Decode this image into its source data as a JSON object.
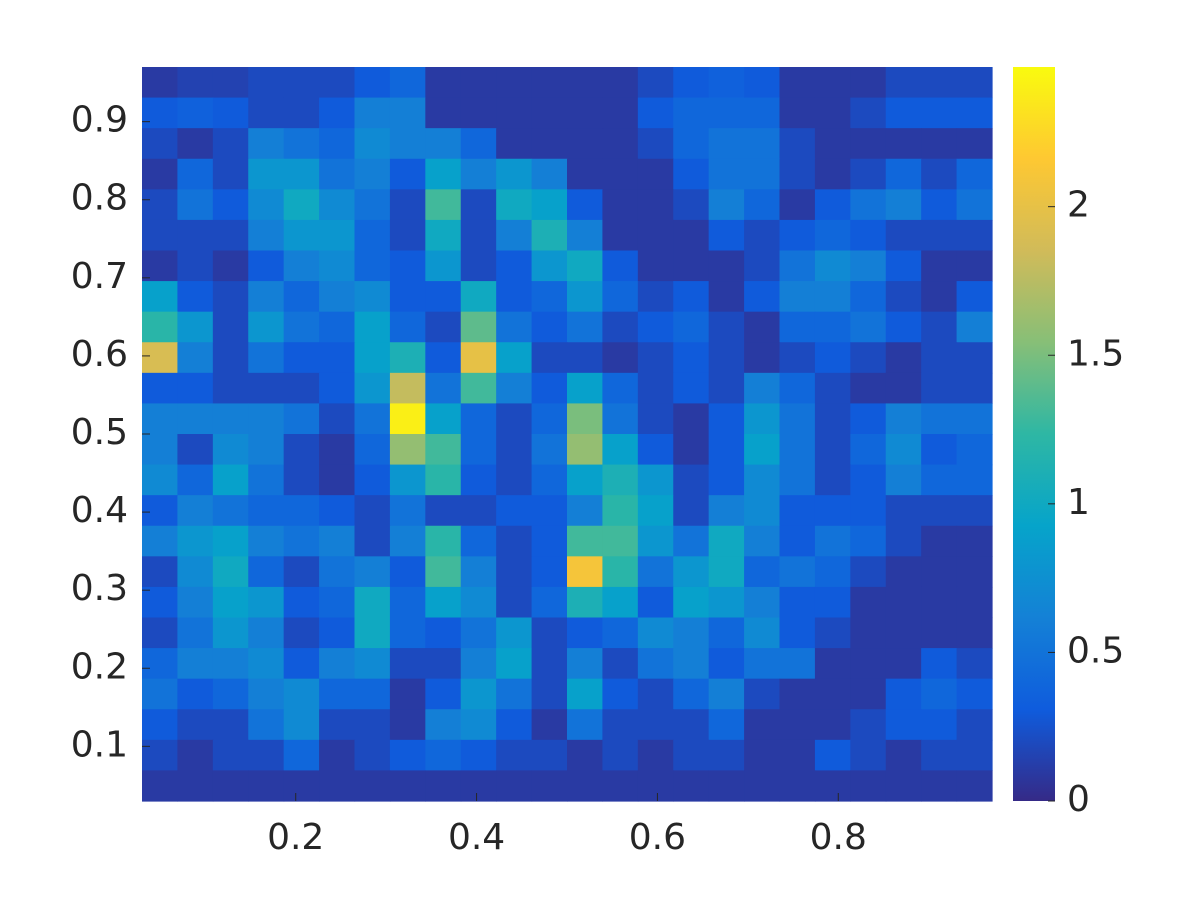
{
  "chart_data": {
    "type": "heatmap",
    "xlim": [
      0.03,
      0.97
    ],
    "ylim": [
      0.03,
      0.97
    ],
    "xticks": [
      0.2,
      0.4,
      0.6,
      0.8
    ],
    "yticks": [
      0.1,
      0.2,
      0.3,
      0.4,
      0.5,
      0.6,
      0.7,
      0.8,
      0.9
    ],
    "clim": [
      0,
      2.47
    ],
    "cticks": [
      0,
      0.5,
      1,
      1.5,
      2
    ],
    "colormap": [
      "#352a87",
      "#0f5cdd",
      "#1481d6",
      "#06a4ca",
      "#2eb7a4",
      "#87bf77",
      "#d1bb59",
      "#fec832",
      "#f9fb0e"
    ],
    "z": [
      [
        0.1,
        0.15,
        0.15,
        0.2,
        0.2,
        0.2,
        0.3,
        0.4,
        0.1,
        0.1,
        0.1,
        0.1,
        0.1,
        0.1,
        0.2,
        0.3,
        0.35,
        0.3,
        0.1,
        0.1,
        0.1,
        0.2,
        0.2,
        0.2
      ],
      [
        0.3,
        0.35,
        0.3,
        0.2,
        0.2,
        0.3,
        0.6,
        0.6,
        0.1,
        0.1,
        0.1,
        0.1,
        0.1,
        0.1,
        0.3,
        0.4,
        0.4,
        0.4,
        0.1,
        0.1,
        0.2,
        0.3,
        0.3,
        0.3
      ],
      [
        0.2,
        0.1,
        0.2,
        0.6,
        0.5,
        0.4,
        0.7,
        0.6,
        0.6,
        0.4,
        0.1,
        0.1,
        0.1,
        0.1,
        0.2,
        0.4,
        0.5,
        0.5,
        0.2,
        0.1,
        0.1,
        0.1,
        0.1,
        0.1
      ],
      [
        0.1,
        0.4,
        0.2,
        0.8,
        0.8,
        0.5,
        0.6,
        0.3,
        0.9,
        0.6,
        0.8,
        0.6,
        0.1,
        0.1,
        0.1,
        0.3,
        0.5,
        0.5,
        0.2,
        0.1,
        0.2,
        0.4,
        0.2,
        0.4
      ],
      [
        0.2,
        0.5,
        0.3,
        0.7,
        1.0,
        0.7,
        0.5,
        0.2,
        1.3,
        0.2,
        1.0,
        0.9,
        0.3,
        0.1,
        0.1,
        0.2,
        0.6,
        0.4,
        0.1,
        0.3,
        0.5,
        0.6,
        0.3,
        0.5
      ],
      [
        0.2,
        0.2,
        0.2,
        0.6,
        0.8,
        0.8,
        0.4,
        0.2,
        1.0,
        0.2,
        0.6,
        1.1,
        0.6,
        0.1,
        0.1,
        0.1,
        0.3,
        0.2,
        0.3,
        0.4,
        0.3,
        0.2,
        0.2,
        0.2
      ],
      [
        0.1,
        0.2,
        0.1,
        0.3,
        0.6,
        0.7,
        0.4,
        0.3,
        0.8,
        0.2,
        0.3,
        0.8,
        1.0,
        0.3,
        0.1,
        0.1,
        0.1,
        0.2,
        0.5,
        0.7,
        0.6,
        0.3,
        0.1,
        0.1
      ],
      [
        0.9,
        0.3,
        0.2,
        0.6,
        0.4,
        0.6,
        0.7,
        0.3,
        0.3,
        1.0,
        0.3,
        0.4,
        0.8,
        0.4,
        0.2,
        0.3,
        0.1,
        0.3,
        0.6,
        0.6,
        0.4,
        0.2,
        0.1,
        0.3
      ],
      [
        1.2,
        0.8,
        0.2,
        0.8,
        0.5,
        0.4,
        0.9,
        0.4,
        0.2,
        1.4,
        0.5,
        0.3,
        0.5,
        0.2,
        0.3,
        0.4,
        0.2,
        0.1,
        0.4,
        0.4,
        0.5,
        0.3,
        0.2,
        0.6
      ],
      [
        1.9,
        0.6,
        0.2,
        0.5,
        0.3,
        0.3,
        0.9,
        1.1,
        0.3,
        2.0,
        0.9,
        0.2,
        0.2,
        0.1,
        0.2,
        0.3,
        0.2,
        0.1,
        0.2,
        0.3,
        0.2,
        0.1,
        0.2,
        0.2
      ],
      [
        0.3,
        0.3,
        0.2,
        0.2,
        0.2,
        0.3,
        0.8,
        1.8,
        0.5,
        1.3,
        0.6,
        0.3,
        0.9,
        0.4,
        0.2,
        0.3,
        0.2,
        0.6,
        0.4,
        0.2,
        0.1,
        0.1,
        0.2,
        0.2
      ],
      [
        0.6,
        0.6,
        0.6,
        0.6,
        0.5,
        0.2,
        0.5,
        2.4,
        0.9,
        0.4,
        0.2,
        0.4,
        1.5,
        0.5,
        0.2,
        0.1,
        0.3,
        0.8,
        0.5,
        0.2,
        0.3,
        0.6,
        0.5,
        0.5
      ],
      [
        0.6,
        0.2,
        0.7,
        0.6,
        0.2,
        0.1,
        0.4,
        1.6,
        1.3,
        0.4,
        0.2,
        0.5,
        1.6,
        0.9,
        0.3,
        0.1,
        0.3,
        0.9,
        0.5,
        0.2,
        0.4,
        0.7,
        0.3,
        0.4
      ],
      [
        0.7,
        0.4,
        0.9,
        0.5,
        0.2,
        0.1,
        0.3,
        0.8,
        1.2,
        0.3,
        0.2,
        0.4,
        0.9,
        1.1,
        0.8,
        0.2,
        0.3,
        0.7,
        0.5,
        0.2,
        0.3,
        0.6,
        0.4,
        0.4
      ],
      [
        0.3,
        0.6,
        0.5,
        0.4,
        0.4,
        0.3,
        0.2,
        0.5,
        0.2,
        0.2,
        0.3,
        0.3,
        0.6,
        1.2,
        0.9,
        0.2,
        0.6,
        0.7,
        0.3,
        0.3,
        0.3,
        0.2,
        0.2,
        0.2
      ],
      [
        0.6,
        0.8,
        0.9,
        0.6,
        0.5,
        0.6,
        0.2,
        0.6,
        1.2,
        0.4,
        0.2,
        0.3,
        1.3,
        1.3,
        0.8,
        0.5,
        1.0,
        0.6,
        0.3,
        0.5,
        0.4,
        0.2,
        0.1,
        0.1
      ],
      [
        0.2,
        0.7,
        1.0,
        0.4,
        0.2,
        0.5,
        0.6,
        0.3,
        1.3,
        0.6,
        0.2,
        0.3,
        2.1,
        1.2,
        0.5,
        0.8,
        1.0,
        0.4,
        0.5,
        0.4,
        0.2,
        0.1,
        0.1,
        0.1
      ],
      [
        0.3,
        0.6,
        0.9,
        0.8,
        0.3,
        0.4,
        1.0,
        0.4,
        0.9,
        0.7,
        0.2,
        0.4,
        1.1,
        0.9,
        0.3,
        0.9,
        0.8,
        0.6,
        0.3,
        0.3,
        0.1,
        0.1,
        0.1,
        0.1
      ],
      [
        0.2,
        0.5,
        0.8,
        0.6,
        0.2,
        0.3,
        1.0,
        0.4,
        0.3,
        0.5,
        0.8,
        0.2,
        0.3,
        0.4,
        0.7,
        0.6,
        0.4,
        0.7,
        0.3,
        0.2,
        0.1,
        0.1,
        0.1,
        0.1
      ],
      [
        0.4,
        0.6,
        0.6,
        0.7,
        0.3,
        0.6,
        0.7,
        0.2,
        0.2,
        0.6,
        0.9,
        0.2,
        0.6,
        0.2,
        0.5,
        0.6,
        0.3,
        0.5,
        0.5,
        0.1,
        0.1,
        0.1,
        0.3,
        0.2
      ],
      [
        0.5,
        0.3,
        0.4,
        0.6,
        0.7,
        0.4,
        0.4,
        0.1,
        0.3,
        0.8,
        0.5,
        0.2,
        0.9,
        0.3,
        0.2,
        0.4,
        0.6,
        0.2,
        0.1,
        0.1,
        0.1,
        0.3,
        0.4,
        0.3
      ],
      [
        0.3,
        0.2,
        0.2,
        0.5,
        0.7,
        0.2,
        0.2,
        0.1,
        0.6,
        0.7,
        0.3,
        0.1,
        0.5,
        0.2,
        0.2,
        0.2,
        0.4,
        0.1,
        0.1,
        0.1,
        0.2,
        0.3,
        0.3,
        0.2
      ],
      [
        0.2,
        0.1,
        0.2,
        0.2,
        0.4,
        0.1,
        0.2,
        0.3,
        0.4,
        0.3,
        0.2,
        0.2,
        0.1,
        0.2,
        0.1,
        0.2,
        0.2,
        0.1,
        0.1,
        0.3,
        0.2,
        0.1,
        0.2,
        0.2
      ],
      [
        0.1,
        0.1,
        0.1,
        0.1,
        0.1,
        0.1,
        0.1,
        0.1,
        0.1,
        0.1,
        0.1,
        0.1,
        0.1,
        0.1,
        0.1,
        0.1,
        0.1,
        0.1,
        0.1,
        0.1,
        0.1,
        0.1,
        0.1,
        0.1
      ]
    ]
  }
}
